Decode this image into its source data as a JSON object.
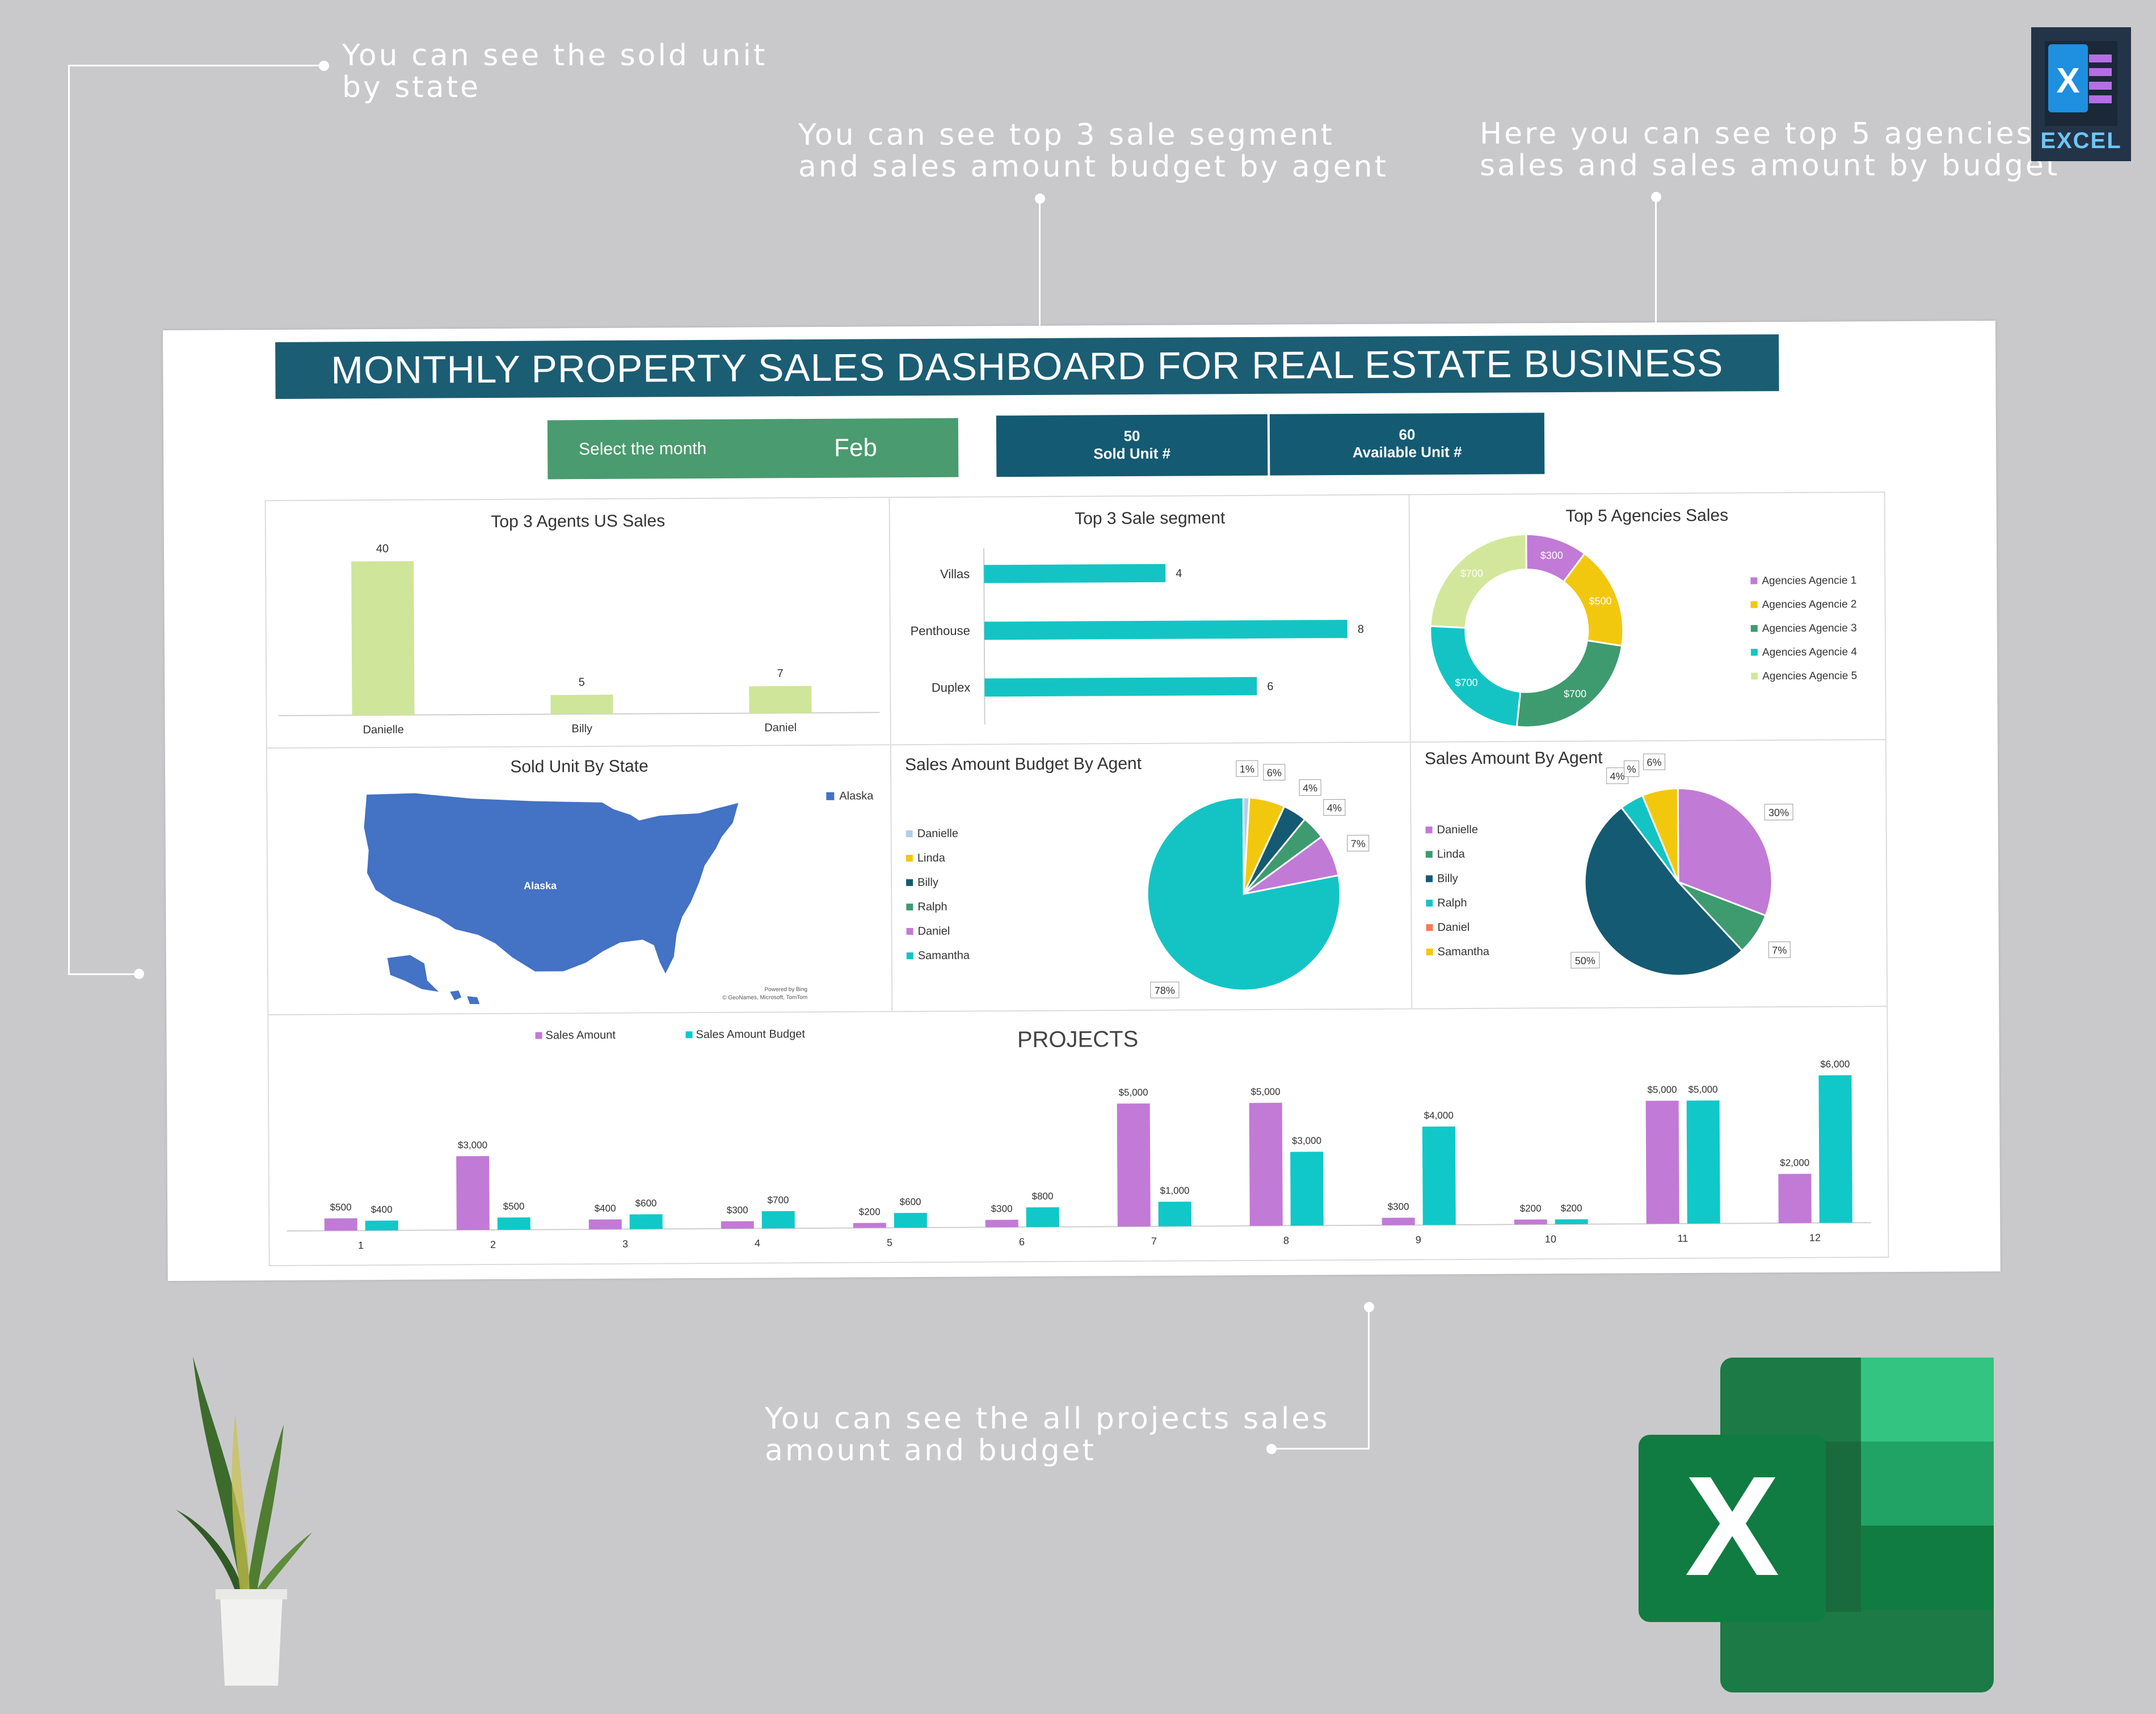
{
  "callouts": {
    "sold_by_state": "You can see the sold unit\nby state",
    "segment_budget": "You can see top 3 sale segment\nand sales amount budget by agent",
    "agencies": "Here you can see top 5 agencies\nsales and sales amount by budget",
    "projects": "You can see the all projects sales\namount and budget"
  },
  "badge": {
    "label": "EXCEL"
  },
  "dashboard": {
    "title": "MONTHLY PROPERTY SALES DASHBOARD FOR REAL ESTATE BUSINESS",
    "month_label": "Select the month",
    "month_value": "Feb",
    "sold_units": {
      "value": "50",
      "label": "Sold Unit #"
    },
    "available_units": {
      "value": "60",
      "label": "Available Unit #"
    }
  },
  "colors": {
    "title_bar": "#1b5d73",
    "month_box": "#4a9b6f",
    "unit_box": "#145a73",
    "agent_bar": "#cfe59a",
    "segment_bar": "#14c4c4",
    "map_fill": "#4472c4",
    "sales_amount": "#c17ad6",
    "sales_budget": "#10c8c8"
  },
  "chart_data": [
    {
      "id": "agents",
      "type": "bar",
      "title": "Top 3 Agents US Sales",
      "categories": [
        "Danielle",
        "Billy",
        "Daniel"
      ],
      "values": [
        40,
        5,
        7
      ],
      "ylim": [
        0,
        44
      ]
    },
    {
      "id": "segments",
      "type": "bar",
      "orientation": "horizontal",
      "title": "Top 3 Sale segment",
      "categories": [
        "Villas",
        "Penthouse",
        "Duplex"
      ],
      "values": [
        4,
        8,
        6
      ],
      "xlim": [
        0,
        9
      ]
    },
    {
      "id": "agencies",
      "type": "pie",
      "donut": true,
      "title": "Top 5 Agencies Sales",
      "labels": [
        "Agencies Agencie 1",
        "Agencies Agencie 2",
        "Agencies Agencie 3",
        "Agencies Agencie 4",
        "Agencies Agencie 5"
      ],
      "values": [
        300,
        500,
        700,
        700,
        700
      ],
      "value_labels": [
        "$300",
        "$500",
        "$700",
        "$700",
        "$700"
      ],
      "colors": [
        "#c17ad6",
        "#f2c80f",
        "#3e9b6f",
        "#14c4c4",
        "#d3e79c"
      ],
      "legend": "right"
    },
    {
      "id": "map",
      "type": "map",
      "title": "Sold Unit By State",
      "legend": [
        "Alaska"
      ],
      "region_label": "Alaska",
      "credit": [
        "Powered by Bing",
        "© GeoNames, Microsoft, TomTom"
      ]
    },
    {
      "id": "budget_by_agent",
      "type": "pie",
      "title": "Sales Amount Budget By Agent",
      "labels": [
        "Danielle",
        "Linda",
        "Billy",
        "Ralph",
        "Daniel",
        "Samantha"
      ],
      "values": [
        1,
        6,
        4,
        4,
        7,
        78
      ],
      "value_labels": [
        "1%",
        "6%",
        "4%",
        "4%",
        "7%",
        "78%"
      ],
      "colors": [
        "#b4cde8",
        "#f2c80f",
        "#145a73",
        "#3e9b6f",
        "#c17ad6",
        "#14c4c4"
      ],
      "legend": "left"
    },
    {
      "id": "amount_by_agent",
      "type": "pie",
      "title": "Sales Amount By Agent",
      "labels": [
        "Danielle",
        "Linda",
        "Billy",
        "Ralph",
        "Daniel",
        "Samantha"
      ],
      "values": [
        30,
        7,
        50,
        4,
        0,
        6
      ],
      "value_labels": [
        "30%",
        "7%",
        "50%",
        "4%",
        "%",
        "6%"
      ],
      "colors": [
        "#c17ad6",
        "#3e9b6f",
        "#145a73",
        "#14c4c4",
        "#f47a55",
        "#f2c80f"
      ],
      "legend": "left"
    },
    {
      "id": "projects",
      "type": "bar",
      "title": "PROJECTS",
      "categories": [
        "1",
        "2",
        "3",
        "4",
        "5",
        "6",
        "7",
        "8",
        "9",
        "10",
        "11",
        "12"
      ],
      "series": [
        {
          "name": "Sales Amount",
          "values": [
            500,
            3000,
            400,
            300,
            200,
            300,
            5000,
            5000,
            300,
            200,
            5000,
            2000
          ],
          "labels": [
            "$500",
            "$3,000",
            "$400",
            "$300",
            "$200",
            "$300",
            "$5,000",
            "$5,000",
            "$300",
            "$200",
            "$5,000",
            "$2,000"
          ]
        },
        {
          "name": "Sales Amount Budget",
          "values": [
            400,
            500,
            600,
            700,
            600,
            800,
            1000,
            3000,
            4000,
            200,
            5000,
            6000
          ],
          "labels": [
            "$400",
            "$500",
            "$600",
            "$700",
            "$600",
            "$800",
            "$1,000",
            "$3,000",
            "$4,000",
            "$200",
            "$5,000",
            "$6,000"
          ]
        }
      ],
      "legend": "top-left"
    }
  ]
}
